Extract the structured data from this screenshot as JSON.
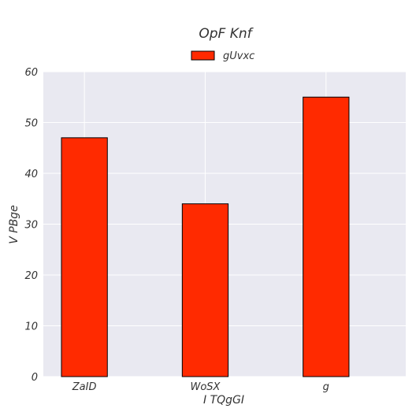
{
  "chart_data": {
    "type": "bar",
    "title": "OpF Knf",
    "xlabel": "I TQgGI",
    "ylabel": "V PBge",
    "categories": [
      "ZaID",
      "WoSX",
      "g"
    ],
    "series": [
      {
        "name": "gUvxc",
        "values": [
          47,
          34,
          55
        ],
        "color": "#ff2a00"
      }
    ],
    "ylim": [
      0,
      60
    ],
    "yticks": [
      0,
      10,
      20,
      30,
      40,
      50,
      60
    ],
    "grid": true,
    "legend": "top-center",
    "background": "#e9e9f1",
    "edge_color": "#000000"
  }
}
